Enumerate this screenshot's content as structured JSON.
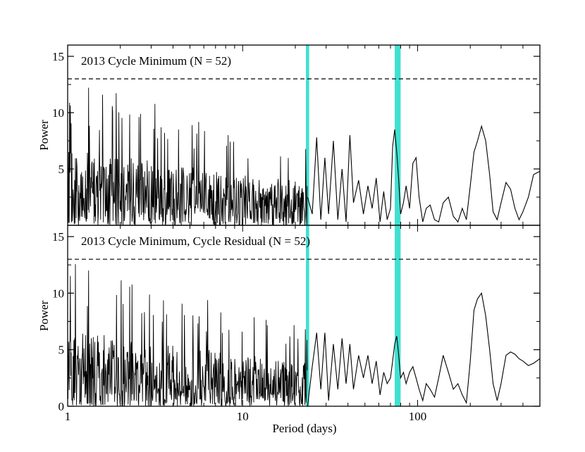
{
  "chart_data": {
    "type": "line",
    "x_axis": {
      "label": "Period (days)",
      "scale": "log",
      "range": [
        1,
        500
      ],
      "tick_labels": [
        "1",
        "10",
        "100"
      ],
      "tick_values": [
        1,
        10,
        100
      ]
    },
    "shaded_bands": [
      {
        "color": "#40e0d0",
        "x_range": [
          23,
          24
        ]
      },
      {
        "color": "#40e0d0",
        "x_range": [
          74,
          80
        ]
      }
    ],
    "threshold_line": {
      "style": "dashed",
      "y": 13
    },
    "panels": [
      {
        "title": "2013 Cycle Minimum (N = 52)",
        "ylabel": "Power",
        "ylim": [
          0,
          16
        ],
        "yticks": [
          "5",
          "10",
          "15"
        ],
        "ytick_values": [
          5,
          10,
          15
        ],
        "series": [
          {
            "color": "#000000",
            "x": [
              23.5,
              25,
              26.5,
              28,
              29.5,
              31,
              33,
              35,
              37,
              39,
              41,
              43,
              46,
              49,
              52,
              55,
              58,
              61,
              64,
              67,
              70,
              72,
              74,
              76,
              78,
              80,
              83,
              86,
              90,
              94,
              98,
              102,
              107,
              112,
              118,
              125,
              132,
              140,
              150,
              160,
              170,
              180,
              190,
              200,
              210,
              220,
              232,
              245,
              258,
              270,
              285,
              300,
              320,
              340,
              360,
              380,
              400,
              430,
              460,
              500
            ],
            "y": [
              2.5,
              1.0,
              7.8,
              0.5,
              6.0,
              1.0,
              7.5,
              0.5,
              5.0,
              0.3,
              8.0,
              2.0,
              4.0,
              1.0,
              3.5,
              1.5,
              4.2,
              0.3,
              3.0,
              0.5,
              1.5,
              7.0,
              8.5,
              6.5,
              4.0,
              1.0,
              2.0,
              3.5,
              1.5,
              5.5,
              6.0,
              2.5,
              0.3,
              1.5,
              1.8,
              0.5,
              0.3,
              2.0,
              2.5,
              0.8,
              0.3,
              1.5,
              0.5,
              3.5,
              6.5,
              7.5,
              8.8,
              7.5,
              4.5,
              1.2,
              0.5,
              2.0,
              3.8,
              3.2,
              1.5,
              0.5,
              1.2,
              2.5,
              4.5,
              4.8
            ]
          }
        ]
      },
      {
        "title": "2013 Cycle Minimum, Cycle Residual (N = 52)",
        "ylabel": "Power",
        "ylim": [
          0,
          16
        ],
        "yticks": [
          "0",
          "5",
          "10",
          "15"
        ],
        "ytick_values": [
          0,
          5,
          10,
          15
        ],
        "series": [
          {
            "color": "#000000",
            "x": [
              23.5,
              25,
              26.5,
              28,
              29.5,
              31,
              33,
              35,
              37,
              39,
              41,
              43,
              46,
              49,
              52,
              55,
              58,
              61,
              64,
              67,
              70,
              72,
              74,
              76,
              78,
              80,
              83,
              86,
              90,
              94,
              98,
              102,
              107,
              112,
              118,
              125,
              132,
              140,
              150,
              160,
              170,
              180,
              190,
              200,
              210,
              220,
              232,
              245,
              258,
              270,
              285,
              300,
              320,
              340,
              360,
              380,
              400,
              430,
              460,
              500
            ],
            "y": [
              0.0,
              3.5,
              6.5,
              1.5,
              6.5,
              0.5,
              5.5,
              1.5,
              6.0,
              2.0,
              5.5,
              1.5,
              4.5,
              2.5,
              4.5,
              2.0,
              4.0,
              1.0,
              3.0,
              2.0,
              2.5,
              4.0,
              5.5,
              6.2,
              4.5,
              2.5,
              3.0,
              2.0,
              3.0,
              3.5,
              2.5,
              1.5,
              0.5,
              2.0,
              1.5,
              0.8,
              2.5,
              4.5,
              3.0,
              1.5,
              2.0,
              1.0,
              0.3,
              4.0,
              8.5,
              9.5,
              10.0,
              8.0,
              5.0,
              2.0,
              0.5,
              2.0,
              4.5,
              4.8,
              4.6,
              4.2,
              4.0,
              3.6,
              3.8,
              4.2
            ]
          }
        ]
      }
    ]
  }
}
